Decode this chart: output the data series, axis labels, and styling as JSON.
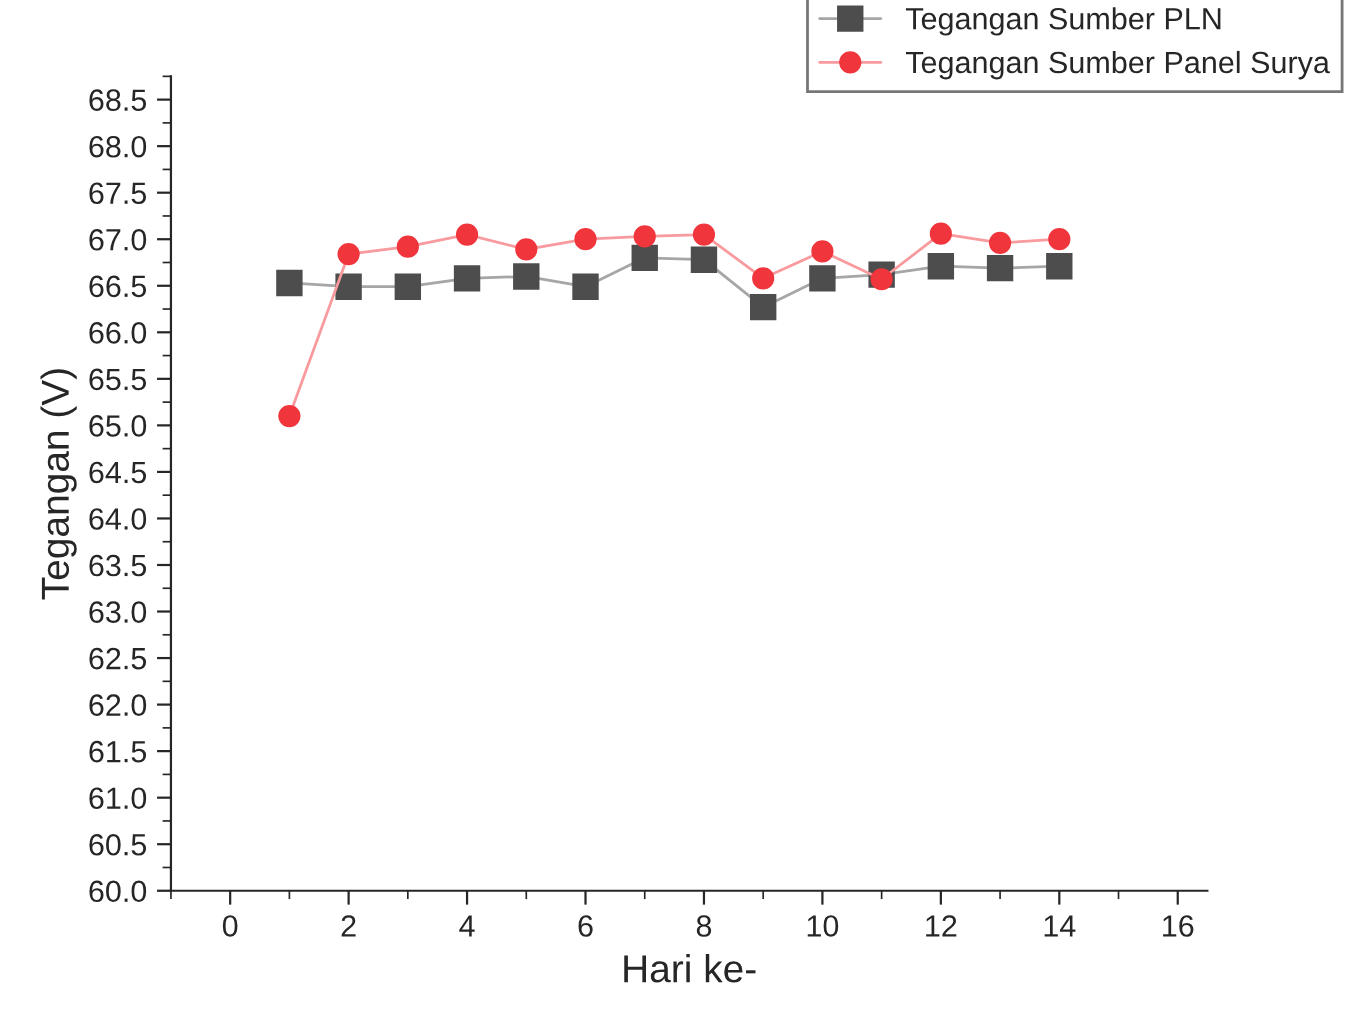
{
  "chart_data": {
    "type": "line",
    "xlabel": "Hari ke-",
    "ylabel": "Tegangan (V)",
    "x": [
      1,
      2,
      3,
      4,
      5,
      6,
      7,
      8,
      9,
      10,
      11,
      12,
      13,
      14
    ],
    "series": [
      {
        "name": "Tegangan Sumber PLN",
        "color": "#4d4d4d",
        "marker": "square",
        "values": [
          66.53,
          66.49,
          66.49,
          66.58,
          66.6,
          66.49,
          66.8,
          66.78,
          66.27,
          66.58,
          66.62,
          66.71,
          66.69,
          66.71
        ]
      },
      {
        "name": "Tegangan Sumber Panel Surya",
        "color": "#f0363c",
        "marker": "circle",
        "values": [
          65.1,
          66.84,
          66.92,
          67.05,
          66.89,
          67.0,
          67.03,
          67.05,
          66.58,
          66.87,
          66.57,
          67.06,
          66.96,
          67.0
        ]
      }
    ],
    "xlim": [
      -1,
      16.5
    ],
    "xticks": [
      0,
      2,
      4,
      6,
      8,
      10,
      12,
      14,
      16
    ],
    "ylim": [
      60,
      68.75
    ],
    "yticks": [
      {
        "value": 60,
        "label": "60.0"
      },
      {
        "value": 60.5,
        "label": "60.5"
      },
      {
        "value": 61,
        "label": "61.0"
      },
      {
        "value": 61.5,
        "label": "61.5"
      },
      {
        "value": 62,
        "label": "62.0"
      },
      {
        "value": 62.5,
        "label": "62.5"
      },
      {
        "value": 63,
        "label": "63.0"
      },
      {
        "value": 63.5,
        "label": "63.5"
      },
      {
        "value": 64,
        "label": "64.0"
      },
      {
        "value": 64.5,
        "label": "64.5"
      },
      {
        "value": 65,
        "label": "65.0"
      },
      {
        "value": 65.5,
        "label": "65.5"
      },
      {
        "value": 66,
        "label": "66.0"
      },
      {
        "value": 66.5,
        "label": "66.5"
      },
      {
        "value": 67,
        "label": "67.0"
      },
      {
        "value": 67.5,
        "label": "67.5"
      },
      {
        "value": 68,
        "label": "68.0"
      },
      {
        "value": 68.5,
        "label": "68.5"
      }
    ],
    "grid": false,
    "legend": "top right",
    "line_style": "solid"
  }
}
